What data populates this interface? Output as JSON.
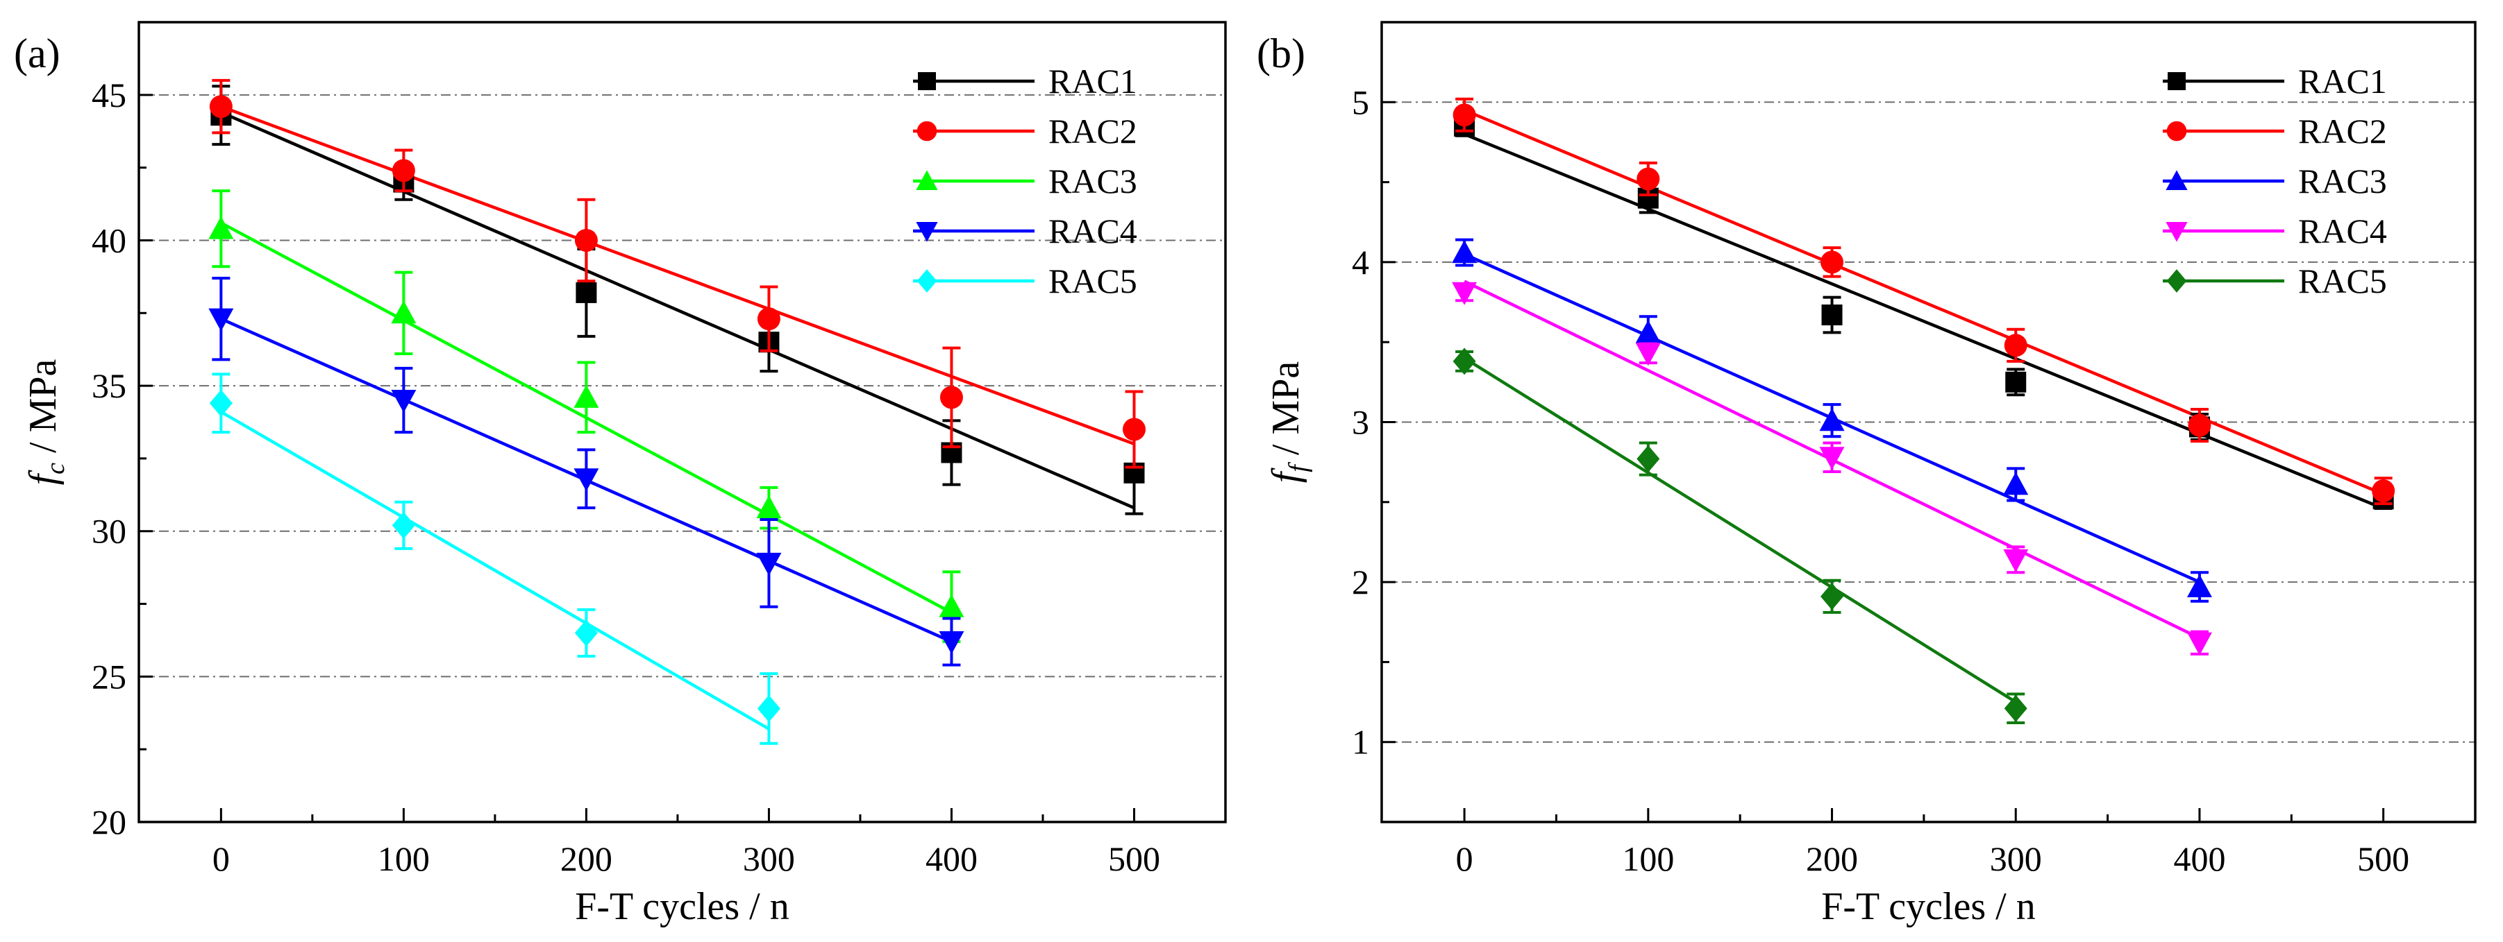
{
  "figure": {
    "panels": [
      "(a)",
      "(b)"
    ]
  },
  "chart_data": [
    {
      "type": "scatter",
      "panel_label": "(a)",
      "title": "",
      "xlabel": "F-T cycles / n",
      "ylabel_main": "f",
      "ylabel_sub": "c",
      "ylabel_suffix": " / MPa",
      "xlim": [
        -45,
        550
      ],
      "ylim": [
        20,
        47.5
      ],
      "xticks": [
        0,
        100,
        200,
        300,
        400,
        500
      ],
      "xtick_labels": [
        "0",
        "100",
        "200",
        "300",
        "400",
        "500"
      ],
      "yticks": [
        20,
        25,
        30,
        35,
        40,
        45
      ],
      "ytick_labels": [
        "20",
        "25",
        "30",
        "35",
        "40",
        "45"
      ],
      "grid": "horizontal dash-dot",
      "legend_position": "top-right",
      "series": [
        {
          "name": "RAC1",
          "marker": "square",
          "color": "#000000",
          "x": [
            0,
            100,
            200,
            300,
            400,
            500
          ],
          "y": [
            44.3,
            42.0,
            38.2,
            36.5,
            32.7,
            32.0
          ],
          "err": [
            1.0,
            0.6,
            1.5,
            1.0,
            1.1,
            1.4
          ],
          "fit": [
            44.4,
            30.8
          ]
        },
        {
          "name": "RAC2",
          "marker": "circle",
          "color": "#ff0000",
          "x": [
            0,
            100,
            200,
            300,
            400,
            500
          ],
          "y": [
            44.6,
            42.4,
            40.0,
            37.3,
            34.6,
            33.5
          ],
          "err": [
            0.9,
            0.7,
            1.4,
            1.1,
            1.7,
            1.3
          ],
          "fit": [
            44.6,
            33.0
          ]
        },
        {
          "name": "RAC3",
          "marker": "triangle-up",
          "color": "#00ff00",
          "x": [
            0,
            100,
            200,
            300,
            400
          ],
          "y": [
            40.4,
            37.5,
            34.6,
            30.8,
            27.4
          ],
          "err": [
            1.3,
            1.4,
            1.2,
            0.7,
            1.2
          ],
          "fit": [
            40.6,
            27.2
          ]
        },
        {
          "name": "RAC4",
          "marker": "triangle-down",
          "color": "#0000ff",
          "x": [
            0,
            100,
            200,
            300,
            400
          ],
          "y": [
            37.3,
            34.5,
            31.8,
            28.9,
            26.2
          ],
          "err": [
            1.4,
            1.1,
            1.0,
            1.5,
            0.8
          ],
          "fit": [
            37.3,
            26.2
          ]
        },
        {
          "name": "RAC5",
          "marker": "diamond",
          "color": "#00ffff",
          "x": [
            0,
            100,
            200,
            300
          ],
          "y": [
            34.4,
            30.2,
            26.5,
            23.9
          ],
          "err": [
            1.0,
            0.8,
            0.8,
            1.2
          ],
          "fit": [
            34.1,
            23.2
          ]
        }
      ]
    },
    {
      "type": "scatter",
      "panel_label": "(b)",
      "title": "",
      "xlabel": "F-T cycles / n",
      "ylabel_main": "f",
      "ylabel_sub": "f",
      "ylabel_suffix": " / MPa",
      "xlim": [
        -45,
        550
      ],
      "ylim": [
        0.5,
        5.5
      ],
      "xticks": [
        0,
        100,
        200,
        300,
        400,
        500
      ],
      "xtick_labels": [
        "0",
        "100",
        "200",
        "300",
        "400",
        "500"
      ],
      "yticks": [
        1,
        2,
        3,
        4,
        5
      ],
      "ytick_labels": [
        "1",
        "2",
        "3",
        "4",
        "5"
      ],
      "grid": "horizontal dash-dot",
      "legend_position": "top-right",
      "series": [
        {
          "name": "RAC1",
          "marker": "square",
          "color": "#000000",
          "x": [
            0,
            100,
            200,
            300,
            400,
            500
          ],
          "y": [
            4.85,
            4.4,
            3.67,
            3.25,
            2.97,
            2.52
          ],
          "err": [
            0.06,
            0.09,
            0.11,
            0.08,
            0.08,
            0.06
          ],
          "fit": [
            4.8,
            2.46
          ]
        },
        {
          "name": "RAC2",
          "marker": "circle",
          "color": "#ff0000",
          "x": [
            0,
            100,
            200,
            300,
            400,
            500
          ],
          "y": [
            4.92,
            4.52,
            4.0,
            3.48,
            2.98,
            2.57
          ],
          "err": [
            0.1,
            0.1,
            0.09,
            0.1,
            0.1,
            0.08
          ],
          "fit": [
            4.95,
            2.55
          ]
        },
        {
          "name": "RAC3",
          "marker": "triangle-up",
          "color": "#0000ff",
          "x": [
            0,
            100,
            200,
            300,
            400
          ],
          "y": [
            4.06,
            3.56,
            3.01,
            2.61,
            1.97
          ],
          "err": [
            0.08,
            0.1,
            0.1,
            0.1,
            0.09
          ],
          "fit": [
            4.05,
            2.0
          ]
        },
        {
          "name": "RAC4",
          "marker": "triangle-down",
          "color": "#ff00ff",
          "x": [
            0,
            100,
            200,
            300,
            400
          ],
          "y": [
            3.81,
            3.43,
            2.78,
            2.14,
            1.62
          ],
          "err": [
            0.05,
            0.06,
            0.09,
            0.08,
            0.07
          ],
          "fit": [
            3.88,
            1.65
          ]
        },
        {
          "name": "RAC5",
          "marker": "diamond",
          "color": "#0f7a0f",
          "x": [
            0,
            100,
            200,
            300
          ],
          "y": [
            3.38,
            2.77,
            1.91,
            1.21
          ],
          "err": [
            0.06,
            0.1,
            0.1,
            0.09
          ],
          "fit": [
            3.4,
            1.25
          ]
        }
      ]
    }
  ]
}
